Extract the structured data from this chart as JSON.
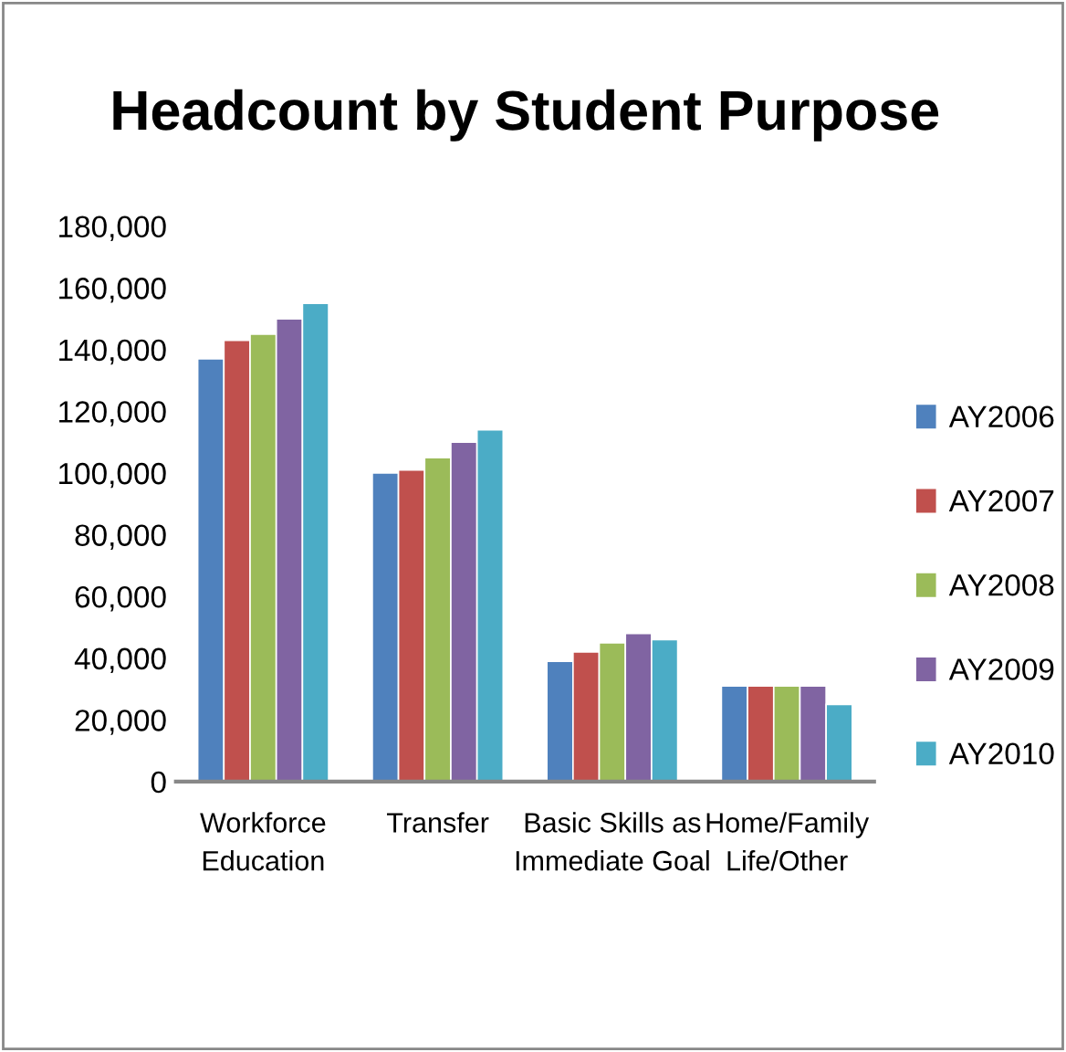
{
  "chart_data": {
    "type": "bar",
    "title": "Headcount by Student Purpose",
    "categories": [
      "Workforce Education",
      "Transfer",
      "Basic Skills as Immediate Goal",
      "Home/Family Life/Other"
    ],
    "series": [
      {
        "name": "AY2006",
        "color": "#4f81bd",
        "values": [
          137000,
          100000,
          39000,
          31000
        ]
      },
      {
        "name": "AY2007",
        "color": "#c0504d",
        "values": [
          143000,
          101000,
          42000,
          31000
        ]
      },
      {
        "name": "AY2008",
        "color": "#9bbb59",
        "values": [
          145000,
          105000,
          45000,
          31000
        ]
      },
      {
        "name": "AY2009",
        "color": "#8064a2",
        "values": [
          150000,
          110000,
          48000,
          31000
        ]
      },
      {
        "name": "AY2010",
        "color": "#4bacc6",
        "values": [
          155000,
          114000,
          46000,
          25000
        ]
      }
    ],
    "ylim": [
      0,
      180000
    ],
    "yticks": [
      {
        "value": 0,
        "label": "0"
      },
      {
        "value": 20000,
        "label": "20,000"
      },
      {
        "value": 40000,
        "label": "40,000"
      },
      {
        "value": 60000,
        "label": "60,000"
      },
      {
        "value": 80000,
        "label": "80,000"
      },
      {
        "value": 100000,
        "label": "100,000"
      },
      {
        "value": 120000,
        "label": "120,000"
      },
      {
        "value": 140000,
        "label": "140,000"
      },
      {
        "value": 160000,
        "label": "160,000"
      },
      {
        "value": 180000,
        "label": "180,000"
      }
    ],
    "legend": "right",
    "grid": false
  }
}
